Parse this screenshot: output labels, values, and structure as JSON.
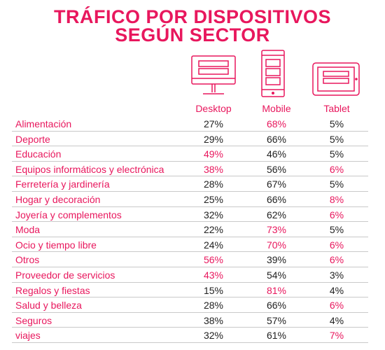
{
  "title_line1": "TRÁFICO POR DISPOSITIVOS",
  "title_line2": "SEGÚN SECTOR",
  "accent_color": "#e8175d",
  "icons": [
    "desktop-icon",
    "mobile-icon",
    "tablet-icon"
  ],
  "chart_data": {
    "type": "table",
    "columns": [
      "Desktop",
      "Mobile",
      "Tablet"
    ],
    "rows": [
      {
        "sector": "Alimentación",
        "values": [
          "27%",
          "68%",
          "5%"
        ],
        "highlight": [
          false,
          true,
          false
        ]
      },
      {
        "sector": "Deporte",
        "values": [
          "29%",
          "66%",
          "5%"
        ],
        "highlight": [
          false,
          false,
          false
        ]
      },
      {
        "sector": "Educación",
        "values": [
          "49%",
          "46%",
          "5%"
        ],
        "highlight": [
          true,
          false,
          false
        ]
      },
      {
        "sector": "Equipos informáticos y electrónica",
        "values": [
          "38%",
          "56%",
          "6%"
        ],
        "highlight": [
          true,
          false,
          true
        ]
      },
      {
        "sector": "Ferretería y jardinería",
        "values": [
          "28%",
          "67%",
          "5%"
        ],
        "highlight": [
          false,
          false,
          false
        ]
      },
      {
        "sector": "Hogar y decoración",
        "values": [
          "25%",
          "66%",
          "8%"
        ],
        "highlight": [
          false,
          false,
          true
        ]
      },
      {
        "sector": "Joyería y complementos",
        "values": [
          "32%",
          "62%",
          "6%"
        ],
        "highlight": [
          false,
          false,
          true
        ]
      },
      {
        "sector": "Moda",
        "values": [
          "22%",
          "73%",
          "5%"
        ],
        "highlight": [
          false,
          true,
          false
        ]
      },
      {
        "sector": "Ocio y tiempo libre",
        "values": [
          "24%",
          "70%",
          "6%"
        ],
        "highlight": [
          false,
          true,
          true
        ]
      },
      {
        "sector": "Otros",
        "values": [
          "56%",
          "39%",
          "6%"
        ],
        "highlight": [
          true,
          false,
          true
        ]
      },
      {
        "sector": "Proveedor de servicios",
        "values": [
          "43%",
          "54%",
          "3%"
        ],
        "highlight": [
          true,
          false,
          false
        ]
      },
      {
        "sector": "Regalos y fiestas",
        "values": [
          "15%",
          "81%",
          "4%"
        ],
        "highlight": [
          false,
          true,
          false
        ]
      },
      {
        "sector": "Salud y belleza",
        "values": [
          "28%",
          "66%",
          "6%"
        ],
        "highlight": [
          false,
          false,
          true
        ]
      },
      {
        "sector": "Seguros",
        "values": [
          "38%",
          "57%",
          "4%"
        ],
        "highlight": [
          false,
          false,
          false
        ]
      },
      {
        "sector": "viajes",
        "values": [
          "32%",
          "61%",
          "7%"
        ],
        "highlight": [
          false,
          false,
          true
        ]
      }
    ]
  }
}
